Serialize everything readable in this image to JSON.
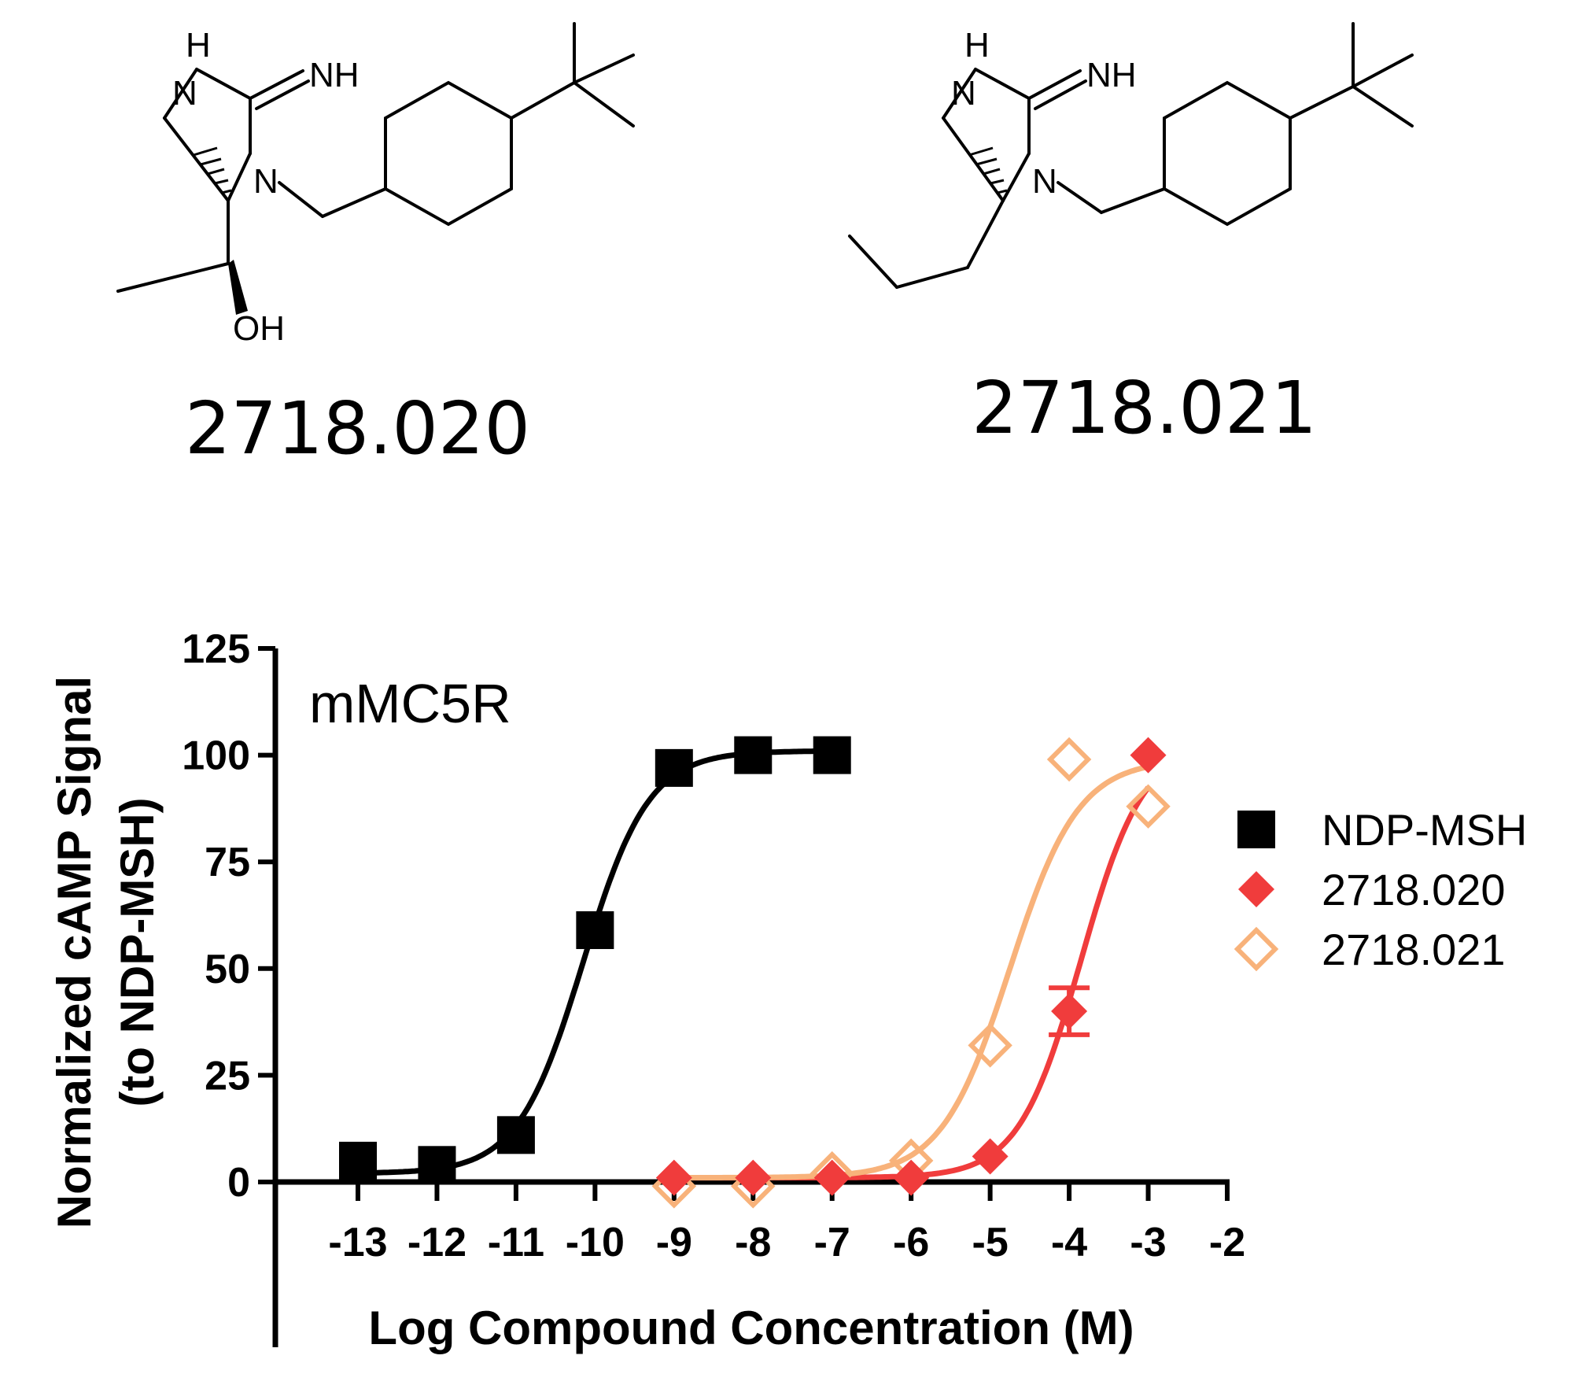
{
  "structures": [
    {
      "label": "2718.020",
      "atoms": {
        "nh_ring": "H",
        "n_ring": "N",
        "imine": "NH",
        "n_sub": "N",
        "oh": "OH"
      }
    },
    {
      "label": "2718.021",
      "atoms": {
        "nh_ring": "H",
        "n_ring": "N",
        "imine": "NH",
        "n_sub": "N"
      }
    }
  ],
  "chart_data": {
    "type": "scatter",
    "title": "mMC5R",
    "xlabel": "Log Compound Concentration (M)",
    "ylabel_lines": [
      "Normalized cAMP Signal",
      "(to NDP-MSH)"
    ],
    "xlim": [
      -14,
      -2
    ],
    "ylim": [
      0,
      125
    ],
    "xticks": [
      -13,
      -12,
      -11,
      -10,
      -9,
      -8,
      -7,
      -6,
      -5,
      -4,
      -3,
      -2
    ],
    "yticks": [
      0,
      25,
      50,
      75,
      100,
      125
    ],
    "legend_position": "right",
    "series": [
      {
        "name": "NDP-MSH",
        "marker": "filled-square",
        "color": "#000000",
        "x": [
          -13,
          -12,
          -11,
          -10,
          -9,
          -8,
          -7
        ],
        "y": [
          5,
          4,
          11,
          59,
          97,
          100,
          100
        ],
        "fit": {
          "bottom": 2,
          "top": 101,
          "log_ec50": -10.15,
          "hill": 1.05
        }
      },
      {
        "name": "2718.020",
        "marker": "filled-diamond",
        "color": "#f03c3c",
        "x": [
          -9,
          -8,
          -7,
          -6,
          -5,
          -4,
          -3
        ],
        "y": [
          1,
          1,
          1,
          1,
          6,
          40,
          100
        ],
        "y_err": [
          0,
          0,
          0,
          0,
          0,
          5.5,
          0
        ],
        "fit": {
          "bottom": 1,
          "top": 103,
          "log_ec50": -3.85,
          "hill": 1.1
        }
      },
      {
        "name": "2718.021",
        "marker": "open-diamond",
        "color": "#f8b27a",
        "x": [
          -9,
          -8,
          -7,
          -6,
          -5,
          -3,
          -4
        ],
        "y": [
          -1,
          -1,
          2,
          5,
          32,
          88,
          99
        ],
        "fit": {
          "bottom": 1,
          "top": 99,
          "log_ec50": -4.75,
          "hill": 1.0
        }
      }
    ]
  }
}
